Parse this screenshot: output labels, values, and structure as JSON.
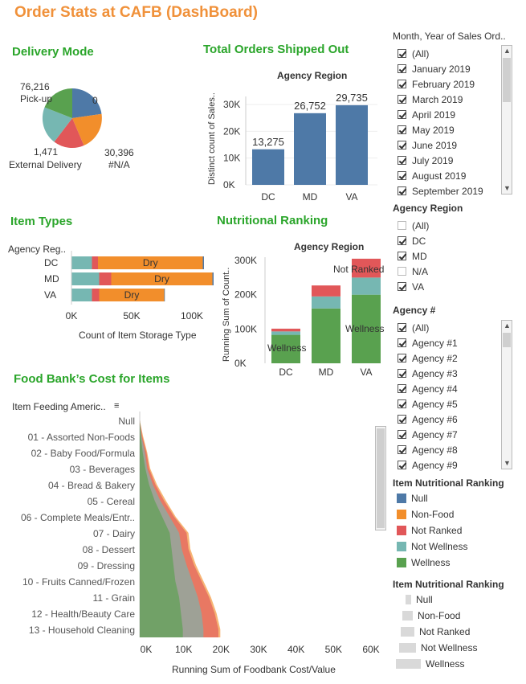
{
  "page_title": "Order Stats at CAFB (DashBoard)",
  "colors": {
    "blue": "#4e79a7",
    "orange": "#f28e2b",
    "red": "#e15759",
    "teal": "#76b7b2",
    "green": "#59a14f",
    "title": "#f0913a",
    "section": "#2aa52a"
  },
  "delivery": {
    "title": "Delivery Mode",
    "labels": [
      {
        "value": "76,216",
        "name": "Pick-up"
      },
      {
        "value": "0",
        "name": ""
      },
      {
        "value": "30,396",
        "name": "#N/A"
      },
      {
        "value": "1,471",
        "name": "External Delivery"
      }
    ]
  },
  "orders": {
    "title": "Total Orders Shipped Out",
    "header": "Agency Region",
    "ylabel": "Distinct count of Sales..",
    "ticks": [
      "30K",
      "20K",
      "10K",
      "0K"
    ]
  },
  "items": {
    "title": "Item Types",
    "header": "Agency Reg..",
    "xlabel": "Count of Item Storage Type",
    "bar_label": "Dry",
    "ticks": [
      "0K",
      "50K",
      "100K"
    ]
  },
  "nutrition": {
    "title": "Nutritional Ranking",
    "header": "Agency Region",
    "ylabel": "Running Sum of Count..",
    "ticks": [
      "300K",
      "200K",
      "100K",
      "0K"
    ],
    "labels": {
      "not_ranked": "Not Ranked",
      "wellness_dc": "Wellness",
      "wellness_va": "Wellness"
    }
  },
  "cost": {
    "title": "Food Bank’s Cost for Items",
    "header": "Item Feeding Americ..",
    "sort_icon": "sort-icon",
    "xlabel": "Running Sum of Foodbank Cost/Value",
    "ticks": [
      "0K",
      "10K",
      "20K",
      "30K",
      "40K",
      "50K",
      "60K"
    ]
  },
  "filters": {
    "month_title": "Month, Year of Sales Ord..",
    "months": [
      "(All)",
      "January 2019",
      "February 2019",
      "March 2019",
      "April 2019",
      "May 2019",
      "June 2019",
      "July 2019",
      "August 2019",
      "September 2019"
    ],
    "region_title": "Agency Region",
    "regions": [
      {
        "label": "(All)",
        "checked": false
      },
      {
        "label": "DC",
        "checked": true
      },
      {
        "label": "MD",
        "checked": true
      },
      {
        "label": "N/A",
        "checked": false
      },
      {
        "label": "VA",
        "checked": true
      }
    ],
    "agency_title": "Agency #",
    "agencies": [
      "(All)",
      "Agency #1",
      "Agency #2",
      "Agency #3",
      "Agency #4",
      "Agency #5",
      "Agency #6",
      "Agency #7",
      "Agency #8",
      "Agency #9"
    ]
  },
  "legend": {
    "color_title": "Item Nutritional Ranking",
    "colors": [
      {
        "label": "Null",
        "color": "#4e79a7"
      },
      {
        "label": "Non-Food",
        "color": "#f28e2b"
      },
      {
        "label": "Not Ranked",
        "color": "#e15759"
      },
      {
        "label": "Not Wellness",
        "color": "#76b7b2"
      },
      {
        "label": "Wellness",
        "color": "#59a14f"
      }
    ],
    "size_title": "Item Nutritional Ranking",
    "sizes": [
      "Null",
      "Non-Food",
      "Not Ranked",
      "Not Wellness",
      "Wellness"
    ]
  },
  "chart_data": [
    {
      "type": "pie",
      "title": "Delivery Mode",
      "categories": [
        "Pick-up",
        "Null (0)",
        "#N/A",
        "External Delivery"
      ],
      "values": [
        76216,
        0,
        30396,
        1471
      ]
    },
    {
      "type": "bar",
      "title": "Total Orders Shipped Out",
      "categories": [
        "DC",
        "MD",
        "VA"
      ],
      "values": [
        13275,
        26752,
        29735
      ],
      "ylabel": "Distinct count of Sales..",
      "ylim": [
        0,
        32000
      ],
      "data_labels": [
        "13,275",
        "26,752",
        "29,735"
      ]
    },
    {
      "type": "bar",
      "title": "Item Types",
      "orientation": "horizontal",
      "stacked": true,
      "categories": [
        "DC",
        "MD",
        "VA"
      ],
      "xlabel": "Count of Item Storage Type",
      "xlim": [
        0,
        120000
      ],
      "series": [
        {
          "name": "Not Wellness",
          "color": "#76b7b2",
          "values": [
            17000,
            23000,
            17000
          ]
        },
        {
          "name": "Not Ranked",
          "color": "#e15759",
          "values": [
            5000,
            10000,
            6000
          ]
        },
        {
          "name": "Dry (Non-Food)",
          "color": "#f28e2b",
          "values": [
            87000,
            84000,
            54000
          ]
        },
        {
          "name": "Null",
          "color": "#4e79a7",
          "values": [
            1000,
            1000,
            500
          ]
        }
      ]
    },
    {
      "type": "bar",
      "title": "Nutritional Ranking",
      "stacked": true,
      "categories": [
        "DC",
        "MD",
        "VA"
      ],
      "ylabel": "Running Sum of Count..",
      "ylim": [
        0,
        330000
      ],
      "series": [
        {
          "name": "Wellness",
          "color": "#59a14f",
          "values": [
            83000,
            160000,
            200000
          ]
        },
        {
          "name": "Not Wellness",
          "color": "#76b7b2",
          "values": [
            10000,
            35000,
            50000
          ]
        },
        {
          "name": "Not Ranked",
          "color": "#e15759",
          "values": [
            8000,
            32000,
            55000
          ]
        }
      ]
    },
    {
      "type": "area",
      "title": "Food Bank’s Cost for Items",
      "orientation": "horizontal",
      "stacked": true,
      "xlabel": "Running Sum of Foodbank Cost/Value",
      "xlim": [
        0,
        64000
      ],
      "categories": [
        "Null",
        "01 - Assorted Non-Foods",
        "02 - Baby Food/Formula",
        "03 - Beverages",
        "04 - Bread & Bakery",
        "05 - Cereal",
        "06 - Complete Meals/Entr..",
        "07 - Dairy",
        "08 - Dessert",
        "09 - Dressing",
        "10 - Fruits Canned/Frozen",
        "11 - Grain",
        "12 - Health/Beauty Care",
        "13 - Household Cleaning"
      ],
      "series": [
        {
          "name": "Wellness",
          "color": "#59a14f",
          "values": [
            0,
            300,
            800,
            1500,
            2500,
            4000,
            6000,
            8000,
            8500,
            9000,
            9500,
            10500,
            11000,
            11500
          ]
        },
        {
          "name": "Not Wellness",
          "color": "#76b7b2",
          "values": [
            0,
            500,
            1400,
            2000,
            3500,
            5500,
            8000,
            10500,
            11200,
            12500,
            14000,
            15500,
            16500,
            17000
          ]
        },
        {
          "name": "Not Ranked",
          "color": "#e15759",
          "values": [
            0,
            700,
            1800,
            2500,
            4200,
            6500,
            9200,
            12500,
            13000,
            14500,
            16500,
            18500,
            20000,
            21000
          ]
        },
        {
          "name": "Non-Food",
          "color": "#f28e2b",
          "values": [
            0,
            900,
            2000,
            2800,
            4600,
            7000,
            9600,
            13000,
            13500,
            15000,
            17000,
            19000,
            20500,
            21500
          ]
        }
      ]
    }
  ]
}
